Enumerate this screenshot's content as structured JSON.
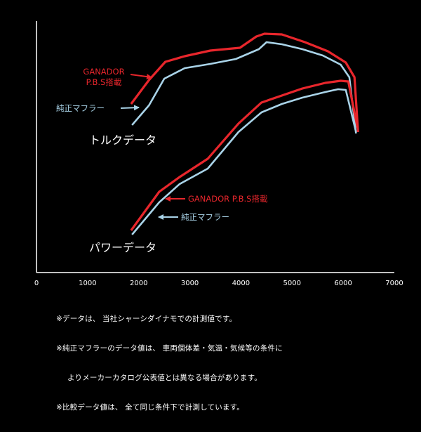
{
  "chart_data": {
    "type": "line",
    "xlim": [
      0,
      7000
    ],
    "x_ticks": [
      0,
      1000,
      2000,
      3000,
      4000,
      5000,
      6000,
      7000
    ],
    "colors": {
      "background": "#000000",
      "axis": "#ffffff",
      "ganador": "#e8262c",
      "stock": "#a9d3e8"
    },
    "series": [
      {
        "key": "torque_ganador",
        "name": "GANADOR\nP.B.S搭載",
        "color": "#e8262c",
        "points": [
          [
            1850,
            148
          ],
          [
            2200,
            114
          ],
          [
            2520,
            88
          ],
          [
            2900,
            80
          ],
          [
            3400,
            72
          ],
          [
            3980,
            68
          ],
          [
            4300,
            52
          ],
          [
            4460,
            48
          ],
          [
            4800,
            49
          ],
          [
            5250,
            60
          ],
          [
            5700,
            73
          ],
          [
            6050,
            89
          ],
          [
            6220,
            110
          ],
          [
            6290,
            188
          ]
        ]
      },
      {
        "key": "torque_stock",
        "name": "純正マフラー",
        "color": "#a9d3e8",
        "points": [
          [
            1870,
            178
          ],
          [
            2200,
            150
          ],
          [
            2500,
            112
          ],
          [
            2900,
            97
          ],
          [
            3400,
            91
          ],
          [
            3900,
            84
          ],
          [
            4350,
            70
          ],
          [
            4500,
            60
          ],
          [
            4800,
            63
          ],
          [
            5200,
            70
          ],
          [
            5600,
            79
          ],
          [
            5950,
            92
          ],
          [
            6120,
            110
          ],
          [
            6250,
            190
          ]
        ]
      },
      {
        "key": "power_ganador",
        "name": "GANADOR P.B.S搭載",
        "color": "#e8262c",
        "points": [
          [
            1850,
            328
          ],
          [
            2400,
            273
          ],
          [
            2800,
            252
          ],
          [
            3350,
            226
          ],
          [
            3950,
            176
          ],
          [
            4400,
            146
          ],
          [
            4800,
            136
          ],
          [
            5200,
            126
          ],
          [
            5650,
            118
          ],
          [
            5950,
            115
          ],
          [
            6100,
            116
          ],
          [
            6280,
            182
          ]
        ]
      },
      {
        "key": "power_stock",
        "name": "純正マフラー",
        "color": "#a9d3e8",
        "points": [
          [
            1870,
            334
          ],
          [
            2400,
            288
          ],
          [
            2800,
            262
          ],
          [
            3350,
            240
          ],
          [
            3950,
            188
          ],
          [
            4400,
            160
          ],
          [
            4800,
            148
          ],
          [
            5200,
            139
          ],
          [
            5650,
            131
          ],
          [
            5900,
            127
          ],
          [
            6050,
            128
          ],
          [
            6250,
            188
          ]
        ]
      }
    ],
    "labels": {
      "torque": "トルクデータ",
      "power": "パワーデータ",
      "torque_ganador": "GANADOR\nP.B.S搭載",
      "torque_stock": "純正マフラー",
      "power_ganador": "GANADOR P.B.S搭載",
      "power_stock": "純正マフラー"
    }
  },
  "notes": [
    "※データは、 当社シャーシダイナモでの計測値です。",
    "※純正マフラーのデータ値は、 車両個体差・気温・気候等の条件に",
    "よりメーカーカタログ公表値とは異なる場合があります。",
    "※比較データ値は、 全て同じ条件下で計測しています。"
  ]
}
